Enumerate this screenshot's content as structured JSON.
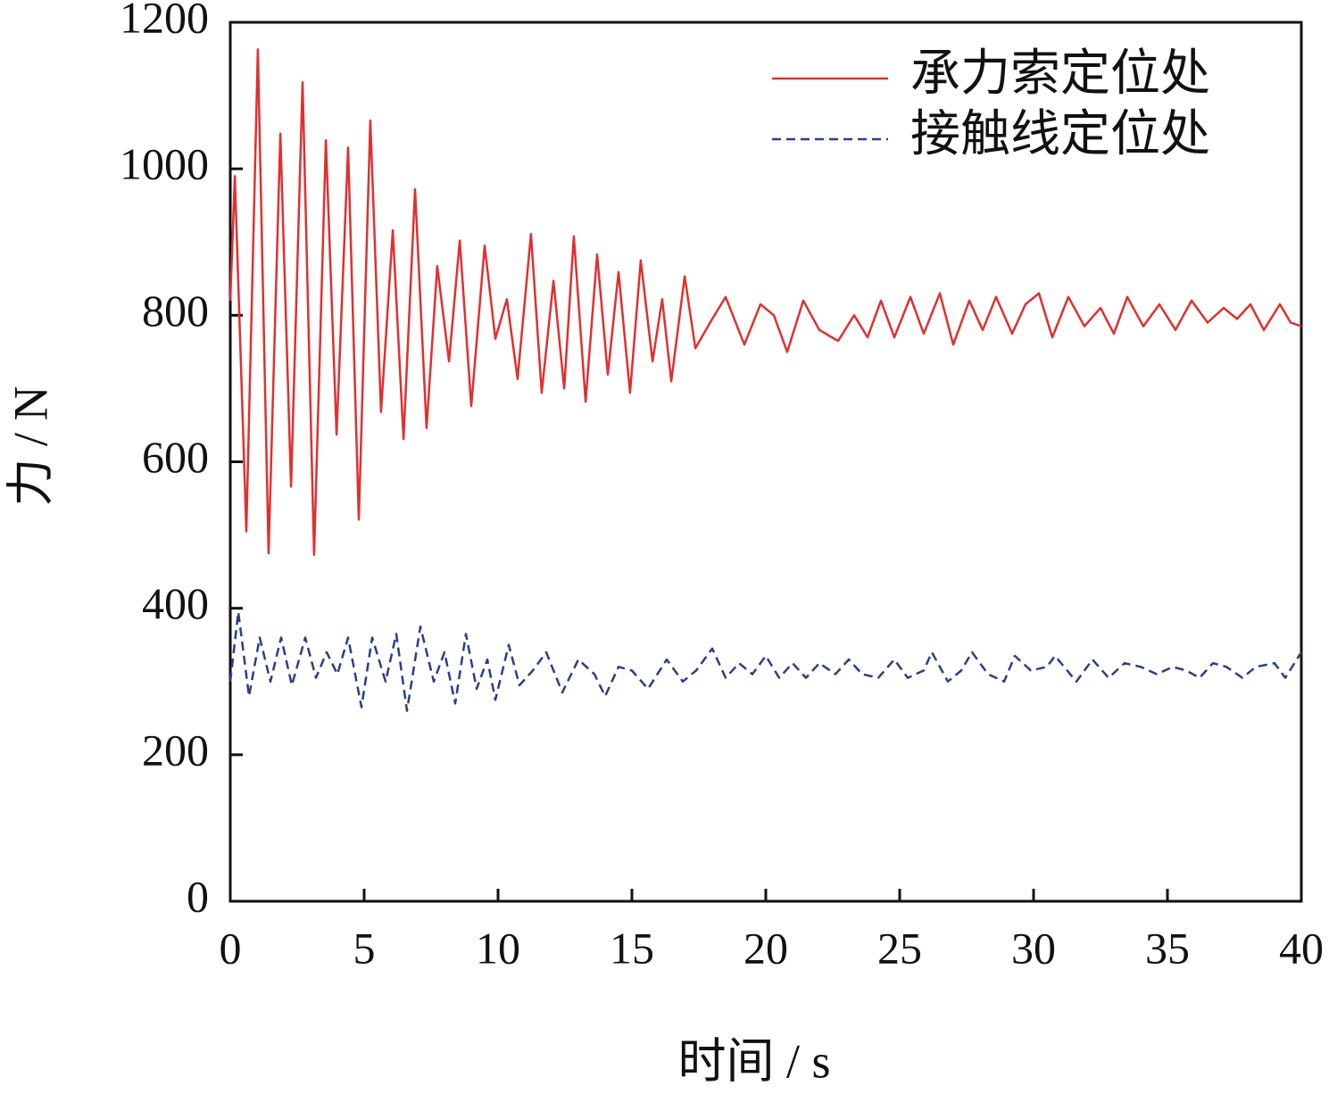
{
  "chart_data": {
    "type": "line",
    "xlabel": "时间 / s",
    "ylabel": "力 / N",
    "xlim": [
      0,
      40
    ],
    "xticks": [
      0,
      5,
      10,
      15,
      20,
      25,
      30,
      35,
      40
    ],
    "ylim": [
      0,
      1200
    ],
    "yticks": [
      0,
      200,
      400,
      600,
      800,
      1000,
      1200
    ],
    "legend": "upper right",
    "series": [
      {
        "name": "承力索定位处",
        "color": "#e03030",
        "dash": false,
        "x": [
          0,
          0.17,
          0.6,
          1.03,
          1.43,
          1.87,
          2.27,
          2.7,
          3.13,
          3.57,
          3.97,
          4.4,
          4.8,
          5.23,
          5.63,
          6.07,
          6.47,
          6.9,
          7.33,
          7.73,
          8.17,
          8.57,
          9.0,
          9.5,
          9.9,
          10.33,
          10.73,
          11.23,
          11.63,
          12.07,
          12.47,
          12.83,
          13.27,
          13.7,
          14.1,
          14.5,
          14.93,
          15.33,
          15.77,
          16.13,
          16.47,
          16.97,
          17.37,
          18,
          18.5,
          19.2,
          19.8,
          20.3,
          20.8,
          21.4,
          22,
          22.7,
          23.3,
          23.8,
          24.3,
          24.8,
          25.4,
          25.9,
          26.5,
          27,
          27.6,
          28.1,
          28.6,
          29.2,
          29.7,
          30.2,
          30.7,
          31.3,
          31.9,
          32.5,
          33,
          33.5,
          34.1,
          34.7,
          35.3,
          35.9,
          36.5,
          37.1,
          37.6,
          38.1,
          38.6,
          39.2,
          39.6,
          40
        ],
        "values": [
          820,
          990,
          505,
          1163,
          475,
          1048,
          566,
          1118,
          473,
          1039,
          637,
          1029,
          521,
          1066,
          668,
          916,
          631,
          972,
          646,
          867,
          737,
          902,
          676,
          895,
          768,
          822,
          713,
          911,
          694,
          847,
          700,
          908,
          682,
          883,
          719,
          859,
          694,
          875,
          737,
          822,
          710,
          853,
          755,
          795,
          825,
          760,
          815,
          800,
          750,
          820,
          780,
          765,
          800,
          770,
          820,
          770,
          825,
          775,
          830,
          760,
          820,
          780,
          825,
          775,
          815,
          830,
          770,
          825,
          785,
          810,
          775,
          825,
          785,
          815,
          780,
          820,
          790,
          810,
          795,
          815,
          780,
          815,
          790,
          785
        ]
      },
      {
        "name": "接触线定位处",
        "color": "#2c3e8c",
        "dash": true,
        "x": [
          0,
          0.3,
          0.7,
          1.1,
          1.5,
          1.9,
          2.3,
          2.8,
          3.2,
          3.6,
          4,
          4.4,
          4.9,
          5.3,
          5.8,
          6.2,
          6.6,
          7.1,
          7.6,
          8,
          8.4,
          8.8,
          9.2,
          9.6,
          9.9,
          10.4,
          10.8,
          11.3,
          11.8,
          12.4,
          13,
          13.6,
          14,
          14.5,
          15,
          15.6,
          16.3,
          16.9,
          17.4,
          18,
          18.5,
          19,
          19.5,
          20,
          20.5,
          21,
          21.5,
          22,
          22.6,
          23.1,
          23.6,
          24.2,
          24.8,
          25.3,
          25.9,
          26.2,
          26.8,
          27.3,
          27.7,
          28.3,
          28.9,
          29.3,
          29.9,
          30.5,
          30.8,
          31.6,
          32.2,
          32.8,
          33.4,
          34,
          34.6,
          35.2,
          35.7,
          36.2,
          36.7,
          37.2,
          37.8,
          38.3,
          39,
          39.4,
          40
        ],
        "values": [
          300,
          395,
          280,
          360,
          300,
          360,
          295,
          360,
          305,
          340,
          310,
          360,
          265,
          360,
          300,
          365,
          260,
          375,
          300,
          340,
          270,
          365,
          290,
          330,
          275,
          350,
          295,
          315,
          340,
          285,
          330,
          310,
          280,
          320,
          315,
          290,
          330,
          300,
          315,
          345,
          305,
          325,
          310,
          335,
          305,
          325,
          305,
          325,
          310,
          330,
          310,
          305,
          330,
          305,
          315,
          340,
          300,
          315,
          340,
          310,
          300,
          335,
          315,
          320,
          335,
          300,
          330,
          305,
          325,
          320,
          310,
          320,
          315,
          305,
          325,
          320,
          305,
          320,
          325,
          305,
          340
        ]
      }
    ]
  }
}
